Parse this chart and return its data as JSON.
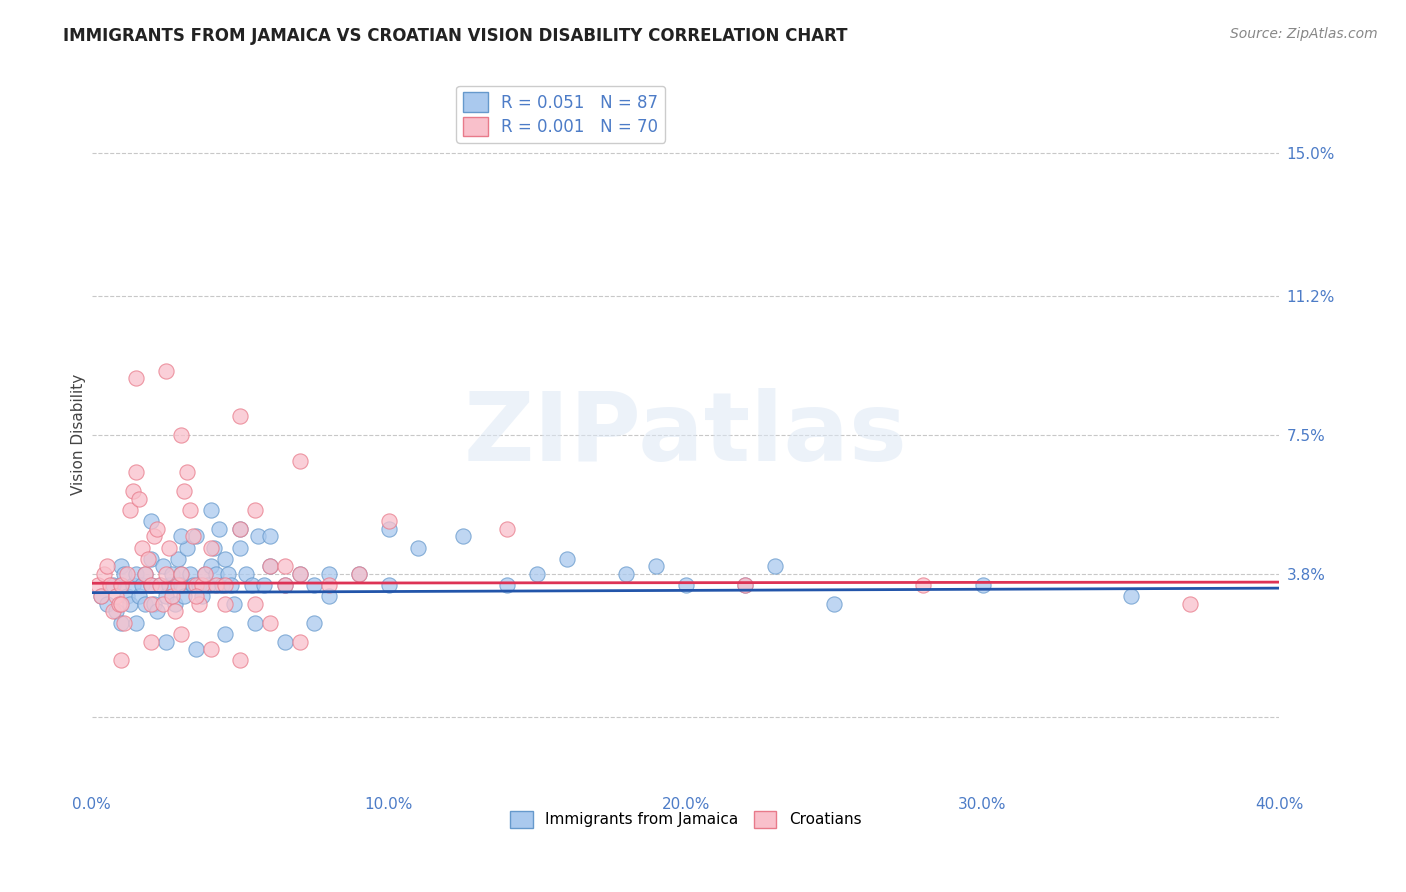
{
  "title": "IMMIGRANTS FROM JAMAICA VS CROATIAN VISION DISABILITY CORRELATION CHART",
  "source": "Source: ZipAtlas.com",
  "ylabel": "Vision Disability",
  "xlim": [
    0.0,
    40.0
  ],
  "ylim": [
    -2.0,
    17.0
  ],
  "ytick_vals": [
    0.0,
    3.8,
    7.5,
    11.2,
    15.0
  ],
  "ytick_labels": [
    "",
    "3.8%",
    "7.5%",
    "11.2%",
    "15.0%"
  ],
  "xtick_vals": [
    0.0,
    10.0,
    20.0,
    30.0,
    40.0
  ],
  "xtick_labels": [
    "0.0%",
    "10.0%",
    "20.0%",
    "30.0%",
    "40.0%"
  ],
  "grid_color": "#c8c8c8",
  "background_color": "#ffffff",
  "blue_color": "#aac9ee",
  "blue_edge_color": "#6699cc",
  "pink_color": "#f9c0cb",
  "pink_edge_color": "#e87a8a",
  "blue_line_color": "#2255aa",
  "pink_line_color": "#dd3355",
  "axis_tick_color": "#4d7cc7",
  "legend_label1": "Immigrants from Jamaica",
  "legend_label2": "Croatians",
  "watermark": "ZIPatlas",
  "blue_scatter_x": [
    0.3,
    0.5,
    0.7,
    0.8,
    1.0,
    1.0,
    1.0,
    1.1,
    1.2,
    1.3,
    1.4,
    1.5,
    1.5,
    1.6,
    1.7,
    1.8,
    1.8,
    2.0,
    2.0,
    2.1,
    2.2,
    2.3,
    2.4,
    2.5,
    2.6,
    2.7,
    2.8,
    2.9,
    3.0,
    3.0,
    3.1,
    3.2,
    3.3,
    3.4,
    3.5,
    3.6,
    3.7,
    3.8,
    3.9,
    4.0,
    4.1,
    4.2,
    4.3,
    4.4,
    4.5,
    4.6,
    4.7,
    4.8,
    5.0,
    5.2,
    5.4,
    5.6,
    5.8,
    6.0,
    6.5,
    7.0,
    7.5,
    8.0,
    9.0,
    10.0,
    11.0,
    12.5,
    14.0,
    16.0,
    18.0,
    20.0,
    22.0,
    23.0,
    25.0,
    30.0,
    35.0,
    2.5,
    3.5,
    4.5,
    5.5,
    6.5,
    7.5,
    2.0,
    3.0,
    4.0,
    5.0,
    6.0,
    8.0,
    10.0,
    15.0,
    19.0
  ],
  "blue_scatter_y": [
    3.2,
    3.0,
    3.5,
    2.8,
    3.5,
    4.0,
    2.5,
    3.8,
    3.2,
    3.0,
    3.5,
    3.8,
    2.5,
    3.2,
    3.5,
    3.0,
    3.8,
    3.5,
    4.2,
    3.0,
    2.8,
    3.5,
    4.0,
    3.2,
    3.5,
    3.8,
    3.0,
    4.2,
    3.8,
    3.5,
    3.2,
    4.5,
    3.8,
    3.5,
    4.8,
    3.5,
    3.2,
    3.8,
    3.5,
    4.0,
    4.5,
    3.8,
    5.0,
    3.5,
    4.2,
    3.8,
    3.5,
    3.0,
    4.5,
    3.8,
    3.5,
    4.8,
    3.5,
    4.0,
    3.5,
    3.8,
    3.5,
    3.2,
    3.8,
    5.0,
    4.5,
    4.8,
    3.5,
    4.2,
    3.8,
    3.5,
    3.5,
    4.0,
    3.0,
    3.5,
    3.2,
    2.0,
    1.8,
    2.2,
    2.5,
    2.0,
    2.5,
    5.2,
    4.8,
    5.5,
    5.0,
    4.8,
    3.8,
    3.5,
    3.8,
    4.0
  ],
  "pink_scatter_x": [
    0.2,
    0.3,
    0.4,
    0.5,
    0.6,
    0.7,
    0.8,
    0.9,
    1.0,
    1.0,
    1.1,
    1.2,
    1.3,
    1.4,
    1.5,
    1.6,
    1.7,
    1.8,
    1.9,
    2.0,
    2.0,
    2.1,
    2.2,
    2.3,
    2.4,
    2.5,
    2.6,
    2.7,
    2.8,
    2.9,
    3.0,
    3.1,
    3.2,
    3.3,
    3.4,
    3.5,
    3.6,
    3.7,
    3.8,
    4.0,
    4.2,
    4.5,
    5.0,
    5.5,
    6.0,
    6.5,
    7.0,
    8.0,
    9.0,
    10.0,
    14.0,
    22.0,
    28.0,
    37.0,
    1.5,
    2.5,
    3.5,
    4.5,
    5.5,
    6.5,
    1.0,
    2.0,
    3.0,
    4.0,
    5.0,
    6.0,
    7.0,
    3.0,
    5.0,
    7.0
  ],
  "pink_scatter_y": [
    3.5,
    3.2,
    3.8,
    4.0,
    3.5,
    2.8,
    3.2,
    3.0,
    3.5,
    3.0,
    2.5,
    3.8,
    5.5,
    6.0,
    6.5,
    5.8,
    4.5,
    3.8,
    4.2,
    3.5,
    3.0,
    4.8,
    5.0,
    3.5,
    3.0,
    3.8,
    4.5,
    3.2,
    2.8,
    3.5,
    3.8,
    6.0,
    6.5,
    5.5,
    4.8,
    3.5,
    3.0,
    3.5,
    3.8,
    4.5,
    3.5,
    3.0,
    5.0,
    5.5,
    4.0,
    3.5,
    3.8,
    3.5,
    3.8,
    5.2,
    5.0,
    3.5,
    3.5,
    3.0,
    9.0,
    9.2,
    3.2,
    3.5,
    3.0,
    4.0,
    1.5,
    2.0,
    2.2,
    1.8,
    1.5,
    2.5,
    2.0,
    7.5,
    8.0,
    6.8
  ],
  "blue_trend_y": [
    3.3,
    3.42
  ],
  "pink_trend_y": [
    3.55,
    3.58
  ],
  "title_fontsize": 12,
  "axis_label_fontsize": 11,
  "tick_fontsize": 11,
  "source_fontsize": 10
}
